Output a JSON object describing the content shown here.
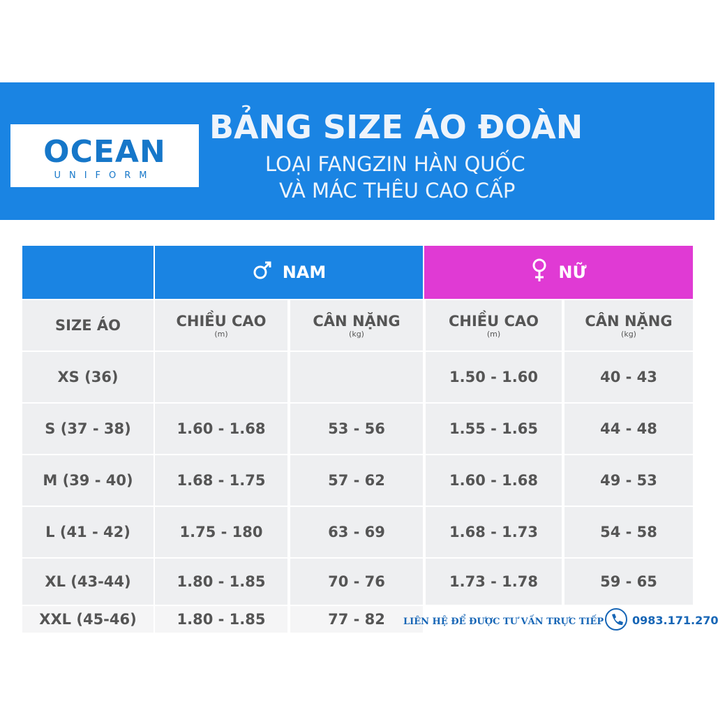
{
  "header": {
    "brand": "OCEAN",
    "brand_sub": "UNIFORM",
    "title": "BẢNG SIZE ÁO ĐOÀN",
    "subtitle_lines": [
      "LOẠI FANGZIN HÀN QUỐC",
      "VÀ MÁC THÊU CAO CẤP"
    ]
  },
  "table": {
    "groups": [
      "NAM",
      "NỮ"
    ],
    "columns": [
      {
        "label": "SIZE ÁO"
      },
      {
        "label": "CHIỀU CAO",
        "unit": "(m)"
      },
      {
        "label": "CÂN NẶNG",
        "unit": "(kg)"
      },
      {
        "label": "CHIỀU CAO",
        "unit": "(m)"
      },
      {
        "label": "CÂN NẶNG",
        "unit": "(kg)"
      }
    ],
    "rows": [
      [
        "XS (36)",
        null,
        null,
        "1.50 - 1.60",
        "40 - 43"
      ],
      [
        "S (37 - 38)",
        "1.60 - 1.68",
        "53 - 56",
        "1.55 - 1.65",
        "44 - 48"
      ],
      [
        "M (39 - 40)",
        "1.68 - 1.75",
        "57 - 62",
        "1.60 - 1.68",
        "49 - 53"
      ],
      [
        "L (41 - 42)",
        "1.75 - 180",
        "63 - 69",
        "1.68 - 1.73",
        "54 - 58"
      ],
      [
        "XL  (43-44)",
        "1.80 - 1.85",
        "70 - 76",
        "1.73 - 1.78",
        "59 - 65"
      ],
      [
        "XXL (45-46)",
        "1.80 - 1.85",
        "77 - 82"
      ]
    ]
  },
  "footer": {
    "contact_text": "LIÊN HỆ ĐỂ ĐƯỢC TƯ VẤN TRỰC TIẾP",
    "phone": "0983.171.270"
  }
}
